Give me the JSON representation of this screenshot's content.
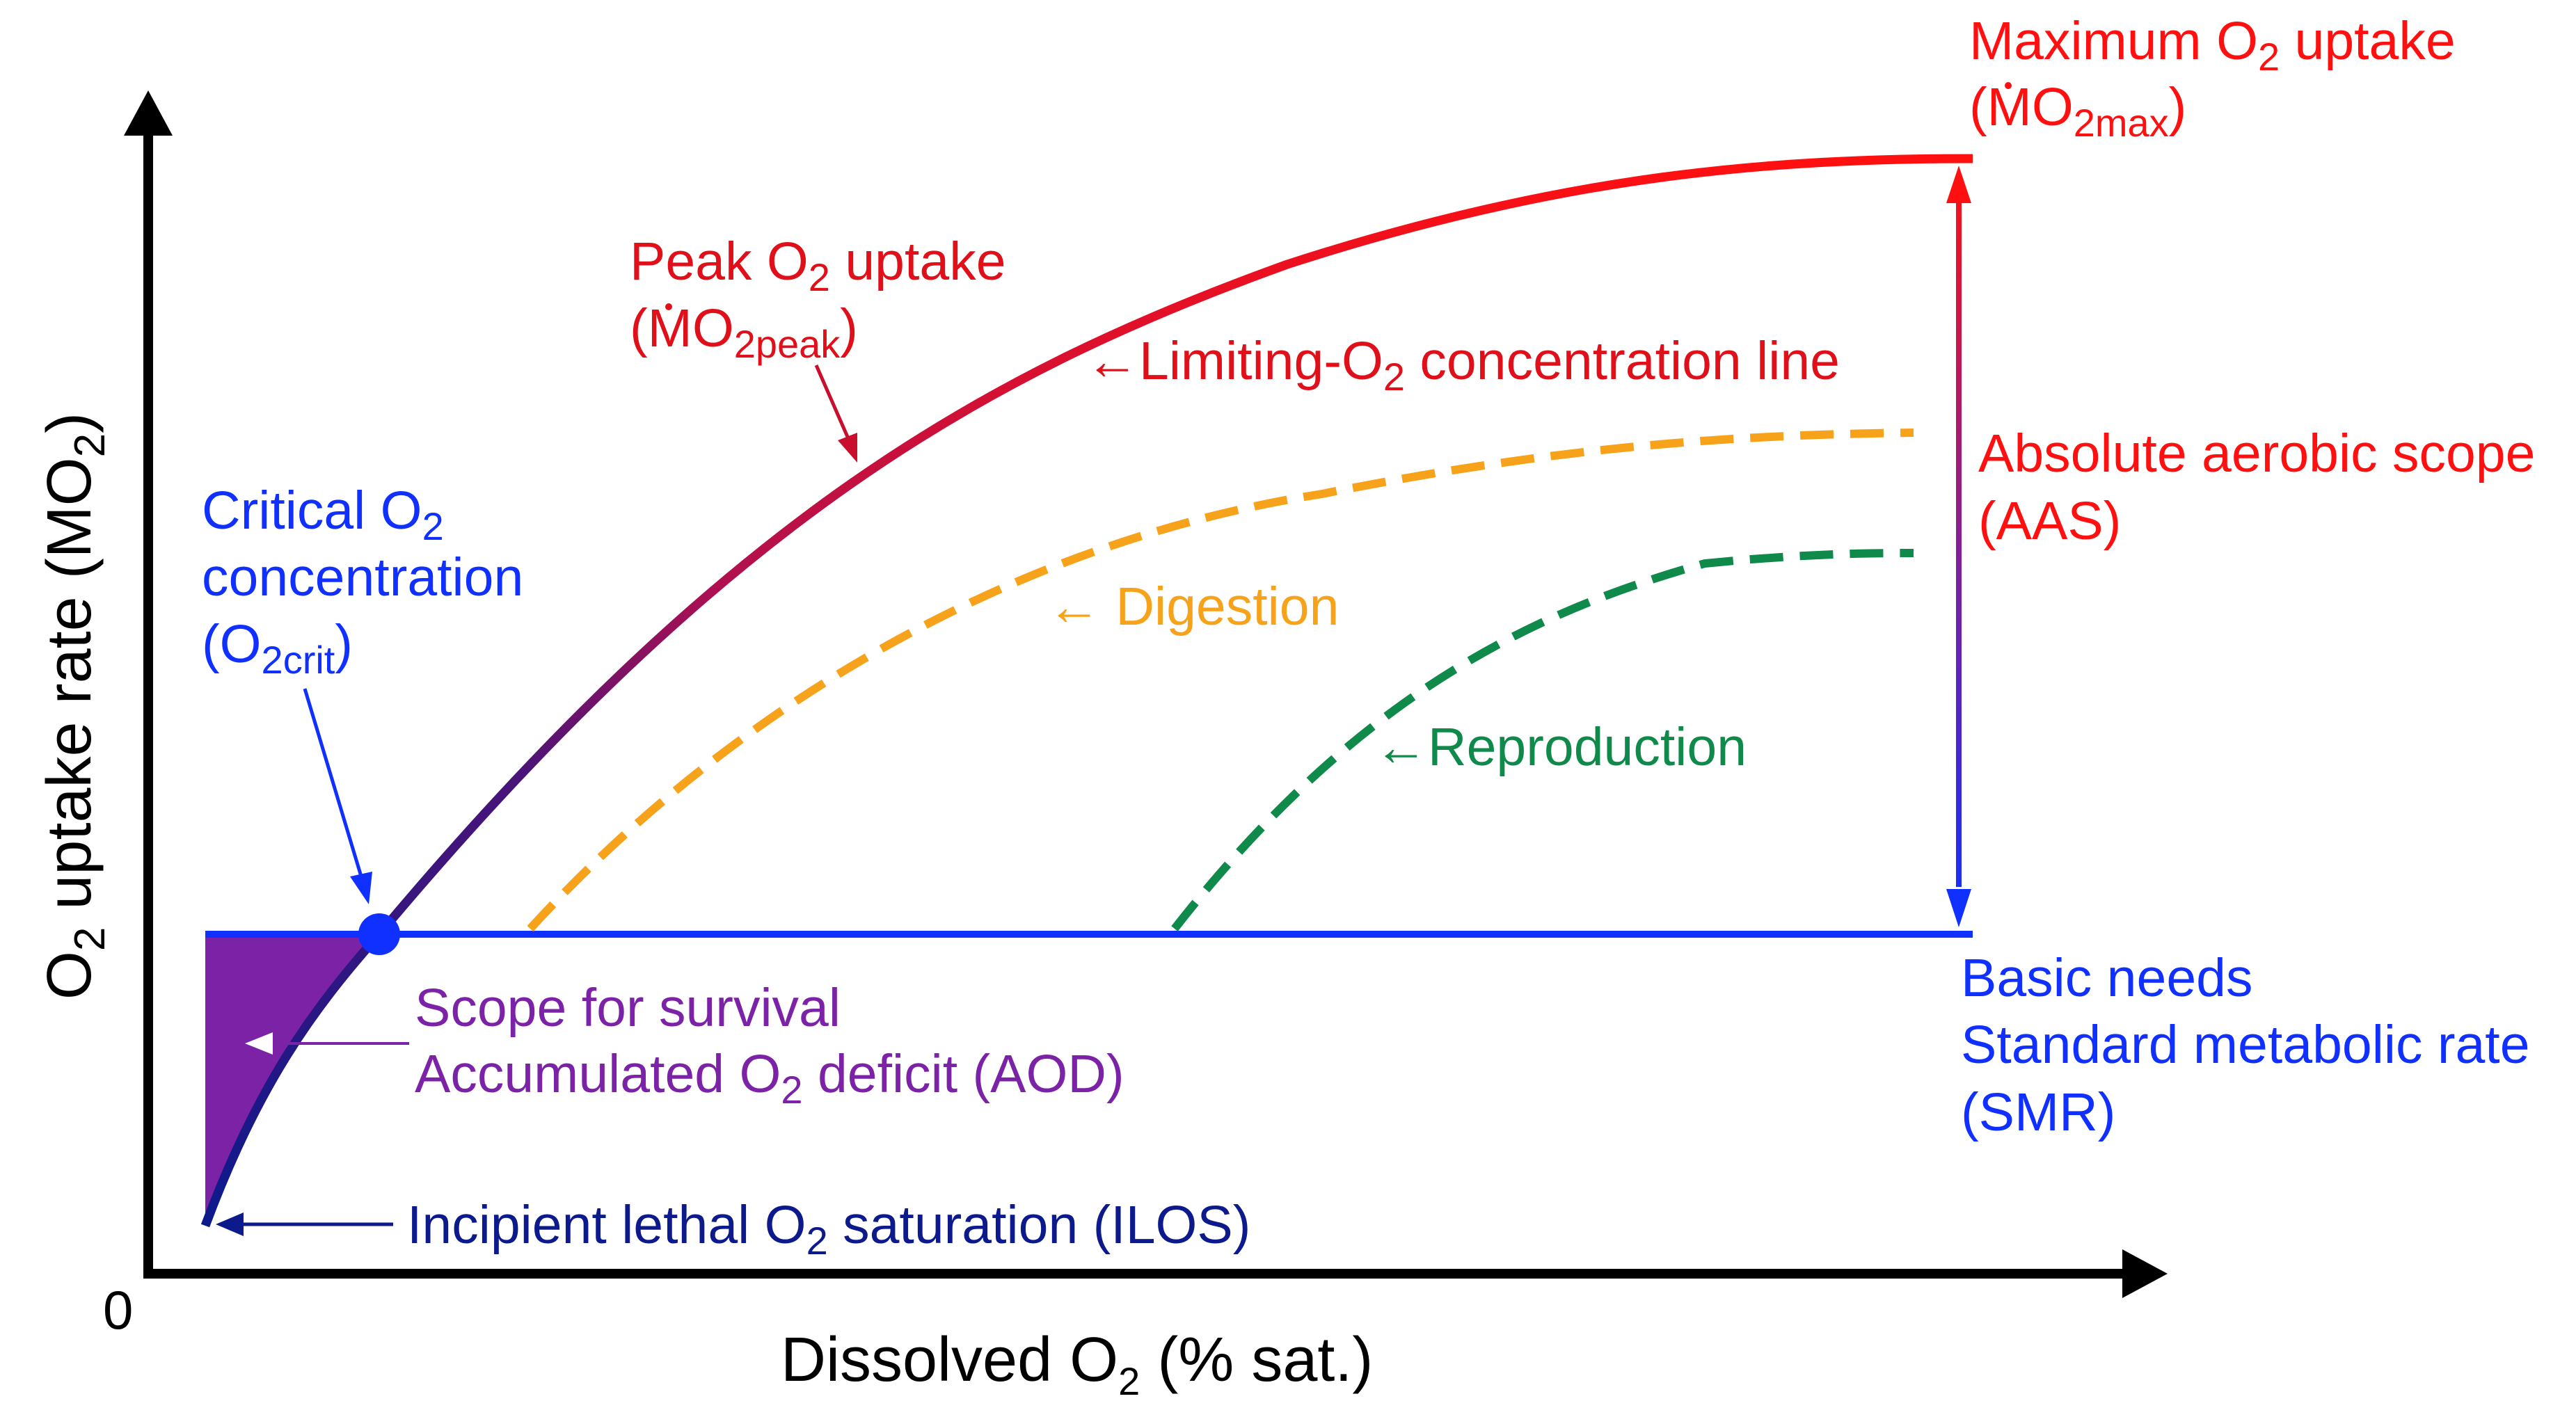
{
  "axes": {
    "origin_label": "0",
    "x_title": {
      "pre": "Dissolved O",
      "sub": "2",
      "post": " (% sat.)"
    },
    "y_title": {
      "pre": "O",
      "sub1": "2",
      "mid": " uptake rate (",
      "dot_m": "M",
      "o": "O",
      "sub2": "2",
      "post": ")"
    }
  },
  "labels": {
    "max_uptake": {
      "line1_pre": "Maximum O",
      "line1_sub": "2",
      "line1_post": " uptake",
      "line2_open": "(",
      "line2_m": "M",
      "line2_o": "O",
      "line2_sub": "2max",
      "line2_close": ")"
    },
    "peak_uptake": {
      "line1_pre": "Peak O",
      "line1_sub": "2",
      "line1_post": " uptake",
      "line2_open": "(",
      "line2_m": "M",
      "line2_o": "O",
      "line2_sub": "2peak",
      "line2_close": ")"
    },
    "limiting_line": {
      "arrow": "←",
      "pre": "Limiting-O",
      "sub": "2",
      "post": " concentration line"
    },
    "aas": {
      "line1": "Absolute aerobic scope",
      "line2": "(AAS)"
    },
    "digestion": {
      "arrow": "←",
      "text": " Digestion"
    },
    "reproduction": {
      "arrow": "←",
      "text": "Reproduction"
    },
    "critical": {
      "line1_pre": "Critical O",
      "line1_sub": "2",
      "line2": "concentration",
      "line3_open": "(O",
      "line3_sub": "2crit",
      "line3_close": ")"
    },
    "survival": {
      "line1": "Scope for survival",
      "line2_pre": "Accumulated O",
      "line2_sub": "2",
      "line2_post": " deficit (AOD)"
    },
    "smr": {
      "line1": "Basic needs",
      "line2": "Standard metabolic rate",
      "line3": "(SMR)"
    },
    "ilos": {
      "pre": "Incipient lethal O",
      "sub": "2",
      "post": " saturation (ILOS)"
    }
  },
  "colors": {
    "max": "#ff1010",
    "basic": "#1030ff",
    "navy": "#0d1a8c",
    "purple": "#7b22a6",
    "digestion": "#f7a21b",
    "reproduction": "#0f8a4a",
    "axis": "#000000"
  }
}
